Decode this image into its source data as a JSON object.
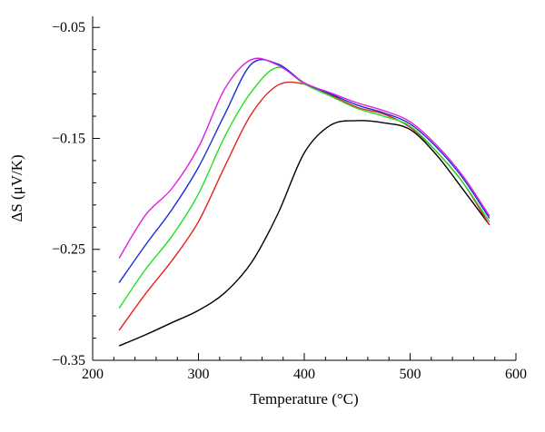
{
  "chart_data": {
    "type": "line",
    "xlabel": "Temperature (°C)",
    "ylabel": "ΔS (μV/K)",
    "xlim": [
      200,
      600
    ],
    "ylim": [
      -0.35,
      -0.04
    ],
    "x_ticks": [
      200,
      300,
      400,
      500,
      600
    ],
    "y_ticks": [
      -0.05,
      -0.15,
      -0.25,
      -0.35
    ],
    "x_tick_labels": [
      "200",
      "300",
      "400",
      "500",
      "600"
    ],
    "y_tick_labels": [
      "−0.05",
      "−0.15",
      "−0.25",
      "−0.35"
    ],
    "grid": false,
    "legend": "none",
    "series": [
      {
        "color": "#000000",
        "x": [
          225,
          250,
          275,
          300,
          325,
          350,
          375,
          400,
          425,
          450,
          475,
          500,
          525,
          550,
          575
        ],
        "y": [
          -0.337,
          -0.327,
          -0.316,
          -0.305,
          -0.289,
          -0.262,
          -0.218,
          -0.163,
          -0.138,
          -0.134,
          -0.136,
          -0.142,
          -0.165,
          -0.196,
          -0.228
        ]
      },
      {
        "color": "#e8201c",
        "x": [
          225,
          250,
          275,
          300,
          325,
          350,
          375,
          400,
          425,
          450,
          475,
          500,
          525,
          550,
          575
        ],
        "y": [
          -0.323,
          -0.29,
          -0.26,
          -0.225,
          -0.175,
          -0.128,
          -0.102,
          -0.101,
          -0.111,
          -0.122,
          -0.128,
          -0.14,
          -0.162,
          -0.19,
          -0.228
        ]
      },
      {
        "color": "#22e022",
        "x": [
          225,
          250,
          275,
          300,
          325,
          350,
          375,
          400,
          425,
          450,
          475,
          500,
          525,
          550,
          575
        ],
        "y": [
          -0.303,
          -0.268,
          -0.238,
          -0.2,
          -0.148,
          -0.108,
          -0.086,
          -0.101,
          -0.112,
          -0.123,
          -0.13,
          -0.139,
          -0.162,
          -0.19,
          -0.225
        ]
      },
      {
        "color": "#1a2ed8",
        "x": [
          225,
          250,
          275,
          300,
          325,
          350,
          375,
          400,
          425,
          450,
          475,
          500,
          525,
          550,
          575
        ],
        "y": [
          -0.28,
          -0.246,
          -0.214,
          -0.176,
          -0.128,
          -0.083,
          -0.083,
          -0.1,
          -0.11,
          -0.12,
          -0.127,
          -0.137,
          -0.158,
          -0.186,
          -0.222
        ]
      },
      {
        "color": "#e020e0",
        "x": [
          225,
          250,
          275,
          300,
          325,
          350,
          375,
          400,
          425,
          450,
          475,
          500,
          525,
          550,
          575
        ],
        "y": [
          -0.258,
          -0.219,
          -0.195,
          -0.158,
          -0.105,
          -0.079,
          -0.084,
          -0.1,
          -0.109,
          -0.118,
          -0.125,
          -0.135,
          -0.156,
          -0.184,
          -0.22
        ]
      }
    ]
  }
}
